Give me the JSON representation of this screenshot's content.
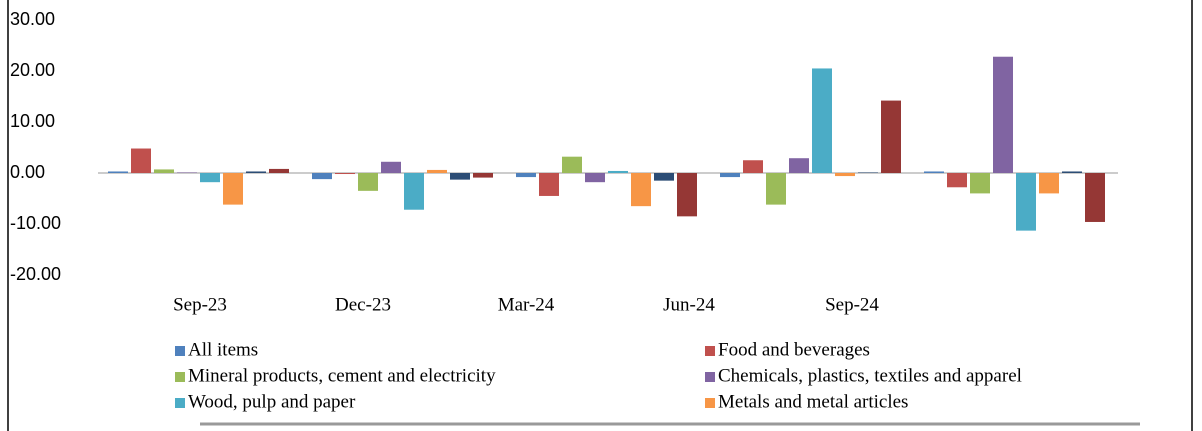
{
  "chart_data": {
    "type": "bar",
    "categories": [
      "Sep-23",
      "Dec-23",
      "Mar-24",
      "Jun-24",
      "Sep-24"
    ],
    "series": [
      {
        "name": "All items",
        "color": "#4f81bd",
        "values": [
          0.3,
          -1.2,
          -0.8,
          -0.8,
          0.3
        ]
      },
      {
        "name": "Food and beverages",
        "color": "#c0504d",
        "values": [
          4.8,
          -0.2,
          -4.5,
          2.5,
          -2.8
        ]
      },
      {
        "name": "Mineral products, cement and electricity",
        "color": "#9bbb59",
        "values": [
          0.7,
          -3.5,
          3.2,
          -6.2,
          -4.0
        ]
      },
      {
        "name": "Chemicals, plastics, textiles and apparel",
        "color": "#8064a2",
        "values": [
          0.1,
          2.2,
          -1.8,
          2.9,
          22.8
        ]
      },
      {
        "name": "Wood, pulp and paper",
        "color": "#4bacc6",
        "values": [
          -1.8,
          -7.2,
          0.4,
          20.5,
          -11.3
        ]
      },
      {
        "name": "Metals and metal articles",
        "color": "#f79646",
        "values": [
          -6.2,
          0.6,
          -6.5,
          -0.6,
          -4.0
        ]
      },
      {
        "name": null,
        "color": "#2c4d75",
        "values": [
          0.3,
          -1.3,
          -1.5,
          0.1,
          0.3
        ]
      },
      {
        "name": null,
        "color": "#953735",
        "values": [
          0.8,
          -0.9,
          -8.5,
          14.2,
          -9.6
        ]
      }
    ],
    "ylim": [
      -20,
      30
    ],
    "yticks": [
      {
        "value": -20,
        "label": "-20.00"
      },
      {
        "value": -10,
        "label": "-10.00"
      },
      {
        "value": 0,
        "label": "0.00"
      },
      {
        "value": 10,
        "label": "10.00"
      },
      {
        "value": 20,
        "label": "20.00"
      },
      {
        "value": 30,
        "label": "30.00"
      }
    ],
    "legend": "bottom"
  }
}
